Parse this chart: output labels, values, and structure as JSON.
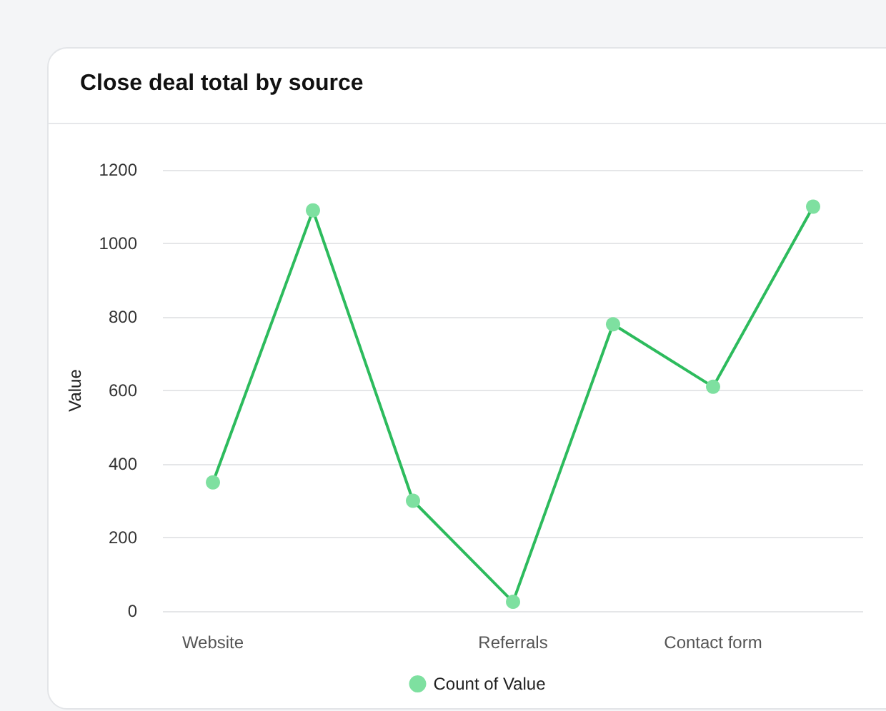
{
  "chart_data": {
    "type": "line",
    "title": "Close deal total by source",
    "ylabel": "Value",
    "categories": [
      "Website",
      null,
      null,
      "Referrals",
      null,
      "Contact form",
      null
    ],
    "series": [
      {
        "name": "Count of Value",
        "color": "#2dbb5d",
        "values": [
          350,
          1090,
          300,
          25,
          780,
          610,
          1100
        ]
      }
    ],
    "ylim": [
      0,
      1200
    ],
    "yticks": [
      0,
      200,
      400,
      600,
      800,
      1000,
      1200
    ],
    "grid": "y",
    "legend": "bottom",
    "marker": "circle",
    "line_style": "solid"
  }
}
